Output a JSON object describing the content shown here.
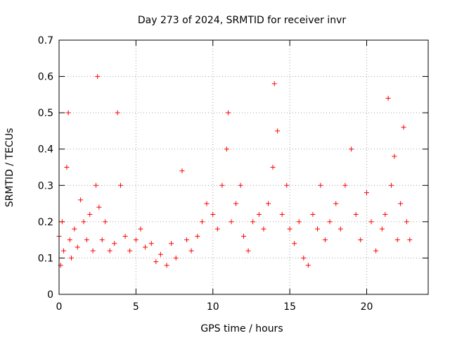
{
  "chart_data": {
    "type": "scatter",
    "title": "Day 273 of 2024, SRMTID for receiver invr",
    "xlabel": "GPS time / hours",
    "ylabel": "SRMTID / TECUs",
    "xlim": [
      0,
      24
    ],
    "ylim": [
      0,
      0.7
    ],
    "x_ticks": [
      0,
      5,
      10,
      15,
      20
    ],
    "x_tick_labels": [
      "0",
      "5",
      "10",
      "15",
      "20"
    ],
    "y_ticks": [
      0,
      0.1,
      0.2,
      0.3,
      0.4,
      0.5,
      0.6,
      0.7
    ],
    "y_tick_labels": [
      "0",
      "0.1",
      "0.2",
      "0.3",
      "0.4",
      "0.5",
      "0.6",
      "0.7"
    ],
    "grid": true,
    "marker": "+",
    "color": "#ff0000",
    "series": [
      {
        "name": "SRMTID",
        "x": [
          0.0,
          0.1,
          0.2,
          0.3,
          0.5,
          0.6,
          0.7,
          0.8,
          1.0,
          1.2,
          1.4,
          1.6,
          1.8,
          2.0,
          2.2,
          2.4,
          2.5,
          2.6,
          2.8,
          3.0,
          3.3,
          3.6,
          3.8,
          4.0,
          4.3,
          4.6,
          5.0,
          5.3,
          5.6,
          6.0,
          6.3,
          6.6,
          7.0,
          7.3,
          7.6,
          8.0,
          8.3,
          8.6,
          9.0,
          9.3,
          9.6,
          10.0,
          10.3,
          10.6,
          10.9,
          11.0,
          11.2,
          11.5,
          11.8,
          12.0,
          12.3,
          12.6,
          13.0,
          13.3,
          13.6,
          13.9,
          14.0,
          14.2,
          14.5,
          14.8,
          15.0,
          15.3,
          15.6,
          15.9,
          16.2,
          16.5,
          16.8,
          17.0,
          17.3,
          17.6,
          18.0,
          18.3,
          18.6,
          19.0,
          19.3,
          19.6,
          20.0,
          20.3,
          20.6,
          21.0,
          21.2,
          21.4,
          21.6,
          21.8,
          22.0,
          22.2,
          22.4,
          22.6,
          22.8
        ],
        "y": [
          0.16,
          0.08,
          0.2,
          0.12,
          0.35,
          0.5,
          0.15,
          0.1,
          0.18,
          0.13,
          0.26,
          0.2,
          0.15,
          0.22,
          0.12,
          0.3,
          0.6,
          0.24,
          0.15,
          0.2,
          0.12,
          0.14,
          0.5,
          0.3,
          0.16,
          0.12,
          0.15,
          0.18,
          0.13,
          0.14,
          0.09,
          0.11,
          0.08,
          0.14,
          0.1,
          0.34,
          0.15,
          0.12,
          0.16,
          0.2,
          0.25,
          0.22,
          0.18,
          0.3,
          0.4,
          0.5,
          0.2,
          0.25,
          0.3,
          0.16,
          0.12,
          0.2,
          0.22,
          0.18,
          0.25,
          0.35,
          0.58,
          0.45,
          0.22,
          0.3,
          0.18,
          0.14,
          0.2,
          0.1,
          0.08,
          0.22,
          0.18,
          0.3,
          0.15,
          0.2,
          0.25,
          0.18,
          0.3,
          0.4,
          0.22,
          0.15,
          0.28,
          0.2,
          0.12,
          0.18,
          0.22,
          0.54,
          0.3,
          0.38,
          0.15,
          0.25,
          0.46,
          0.2,
          0.15
        ]
      }
    ]
  }
}
